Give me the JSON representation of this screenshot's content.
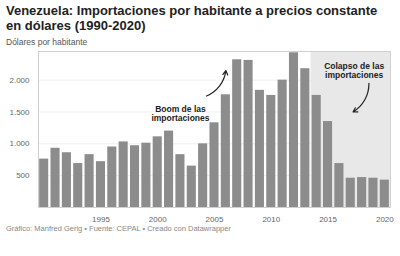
{
  "chart_data": {
    "type": "bar",
    "title": "Venezuela: Importaciones por habitante a precios constante en dólares (1990-2020)",
    "subtitle": "Dólares por habitante",
    "caption": "Gráfico: Manfred Gerig • Fuente: CEPAL • Creado con Datawrapper",
    "x": [
      1990,
      1991,
      1992,
      1993,
      1994,
      1995,
      1996,
      1997,
      1998,
      1999,
      2000,
      2001,
      2002,
      2003,
      2004,
      2005,
      2006,
      2007,
      2008,
      2009,
      2010,
      2011,
      2012,
      2013,
      2014,
      2015,
      2016,
      2017,
      2018,
      2019,
      2020
    ],
    "values": [
      760,
      930,
      860,
      690,
      830,
      720,
      950,
      1030,
      970,
      1010,
      1110,
      1200,
      830,
      650,
      1000,
      1330,
      1770,
      2320,
      2310,
      1840,
      1760,
      2000,
      2430,
      2180,
      1760,
      1350,
      690,
      460,
      470,
      460,
      430
    ],
    "color": "#8c8c8c",
    "xlim": [
      1989.5,
      2020.5
    ],
    "xticks": [
      1995,
      2000,
      2005,
      2010,
      2015,
      2020
    ],
    "ylim": [
      0,
      2450
    ],
    "yticks": [
      {
        "value": 500,
        "label": "500"
      },
      {
        "value": 1000,
        "label": "1.000"
      },
      {
        "value": 1500,
        "label": "1.500"
      },
      {
        "value": 2000,
        "label": "2.000"
      }
    ],
    "grid": true,
    "annotations": [
      {
        "text": "Boom de las\nimportaciones",
        "x": 2002,
        "y": 1480
      },
      {
        "text": "Colapso de las\nimportaciones",
        "x": 2017.3,
        "y": 2150,
        "span": [
          2013.5,
          2020.5
        ]
      }
    ]
  }
}
